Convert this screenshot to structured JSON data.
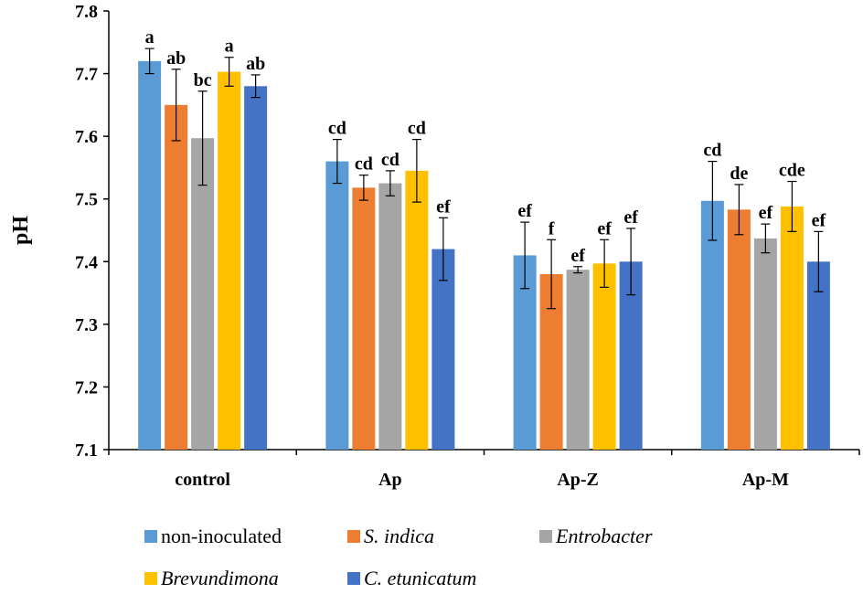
{
  "chart_data": {
    "type": "bar",
    "ylabel": "pH",
    "xlabel": "",
    "ylim": [
      7.1,
      7.8
    ],
    "yticks": [
      "7.1",
      "7.2",
      "7.3",
      "7.4",
      "7.5",
      "7.6",
      "7.7",
      "7.8"
    ],
    "categories": [
      "control",
      "Ap",
      "Ap-Z",
      "Ap-M"
    ],
    "series": [
      {
        "name": "non-inoculated",
        "italic": false,
        "color": "#5B9BD5",
        "values": [
          7.72,
          7.56,
          7.41,
          7.497
        ],
        "errors": [
          0.02,
          0.035,
          0.053,
          0.063
        ],
        "labels": [
          "a",
          "cd",
          "ef",
          "cd"
        ]
      },
      {
        "name": "S. indica",
        "italic": true,
        "color": "#ED7D31",
        "values": [
          7.65,
          7.518,
          7.38,
          7.483
        ],
        "errors": [
          0.057,
          0.02,
          0.055,
          0.04
        ],
        "labels": [
          "ab",
          "cd",
          "f",
          "de"
        ]
      },
      {
        "name": "Entrobacter",
        "italic": true,
        "color": "#A5A5A5",
        "values": [
          7.597,
          7.525,
          7.387,
          7.437
        ],
        "errors": [
          0.075,
          0.02,
          0.005,
          0.023
        ],
        "labels": [
          "bc",
          "cd",
          "ef",
          "ef"
        ]
      },
      {
        "name": "Brevundimona",
        "italic": true,
        "color": "#FFC000",
        "values": [
          7.703,
          7.545,
          7.397,
          7.488
        ],
        "errors": [
          0.023,
          0.05,
          0.038,
          0.04
        ],
        "labels": [
          "a",
          "cd",
          "ef",
          "cde"
        ]
      },
      {
        "name": "C. etunicatum",
        "italic": true,
        "color": "#4472C4",
        "values": [
          7.68,
          7.42,
          7.4,
          7.4
        ],
        "errors": [
          0.018,
          0.05,
          0.053,
          0.048
        ],
        "labels": [
          "ab",
          "ef",
          "ef",
          "ef"
        ]
      }
    ],
    "legend_position": "bottom"
  }
}
